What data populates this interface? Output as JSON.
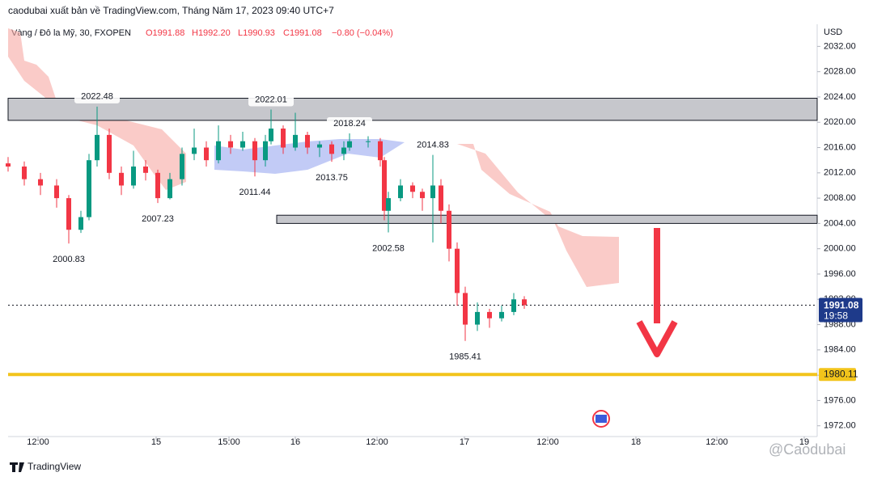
{
  "header": {
    "publisher": "caodubai xuất bản về TradingView.com, Tháng Năm 17, 2023 09:40 UTC+7",
    "symbol": "Vàng / Đô la Mỹ, 30, FXOPEN",
    "open": "O1991.88",
    "high": "H1992.20",
    "low": "L1990.93",
    "close": "C1991.08",
    "change": "−0.80 (−0.04%)",
    "currency": "USD"
  },
  "footer": {
    "brand": "TradingView",
    "watermark": "@Caodubai"
  },
  "chart_data": {
    "type": "candlestick",
    "x": [
      0,
      20,
      40,
      60,
      75,
      90,
      100,
      110,
      125,
      140,
      155,
      170,
      185,
      200,
      215,
      230,
      245,
      260,
      275,
      290,
      305,
      318,
      325,
      340,
      355,
      370,
      385,
      400,
      415,
      422,
      445,
      460,
      465,
      470,
      485,
      500,
      512,
      525,
      535,
      545,
      555,
      565,
      580,
      595,
      610,
      625,
      638
    ],
    "open": [
      2013.5,
      2013,
      2011,
      2010,
      2008,
      2003,
      2005,
      2014,
      2018,
      2012,
      2010,
      2013,
      2012,
      2008,
      2011,
      2015,
      2016,
      2014,
      2017,
      2016,
      2017,
      2014,
      2017,
      2019,
      2016,
      2018,
      2016,
      2016.5,
      2015,
      2016,
      2017,
      2017,
      2014,
      2006,
      2008,
      2010,
      2009,
      2008,
      2010,
      2006,
      2000,
      1993,
      1988,
      1990,
      1989,
      1990,
      1992
    ],
    "high": [
      2014.5,
      2013.8,
      2012,
      2011,
      2008.5,
      2006,
      2015,
      2022.48,
      2019,
      2013,
      2015.5,
      2014,
      2012.5,
      2012,
      2016,
      2019,
      2017,
      2019.5,
      2018,
      2018.5,
      2017.5,
      2018,
      2022.01,
      2019.5,
      2021.5,
      2018.5,
      2017,
      2017,
      2017,
      2018.24,
      2017.8,
      2017.5,
      2014.5,
      2009,
      2011,
      2010.5,
      2009.5,
      2014.83,
      2011,
      2007,
      2001,
      1994,
      1991.5,
      1990.5,
      1991,
      1993,
      1992.5
    ],
    "low": [
      2012.2,
      2010,
      2008.5,
      2006.5,
      2000.83,
      2002.5,
      2004.5,
      2013,
      2011,
      2008.5,
      2009.5,
      2010.8,
      2007.23,
      2007.8,
      2010,
      2014,
      2013,
      2013.5,
      2015,
      2015.5,
      2011.44,
      2013,
      2016.5,
      2015,
      2015.5,
      2015,
      2014.5,
      2013.75,
      2014,
      2015.5,
      2016,
      2013,
      2004.5,
      2002.58,
      2007.5,
      2008,
      2006,
      2001,
      2004,
      1998,
      1991,
      1985.41,
      1987,
      1987.5,
      1988.5,
      1989.5,
      1990.5
    ],
    "close": [
      2013,
      2011,
      2010,
      2008,
      2003,
      2005,
      2014,
      2018,
      2012,
      2010,
      2013,
      2012,
      2008,
      2011,
      2015,
      2016,
      2014,
      2017,
      2016,
      2017,
      2014,
      2017,
      2019,
      2016,
      2018,
      2016,
      2016.5,
      2015,
      2016,
      2017,
      2017,
      2014,
      2006,
      2008,
      2010,
      2009,
      2008,
      2010,
      2006,
      2000,
      1993,
      1988,
      1990,
      1989,
      1990,
      1992,
      1991.08
    ],
    "up_color": "#089981",
    "down_color": "#f23645",
    "xlim": [
      0,
      1000
    ],
    "xticks": [
      {
        "value": 37,
        "label": "12:00"
      },
      {
        "value": 183,
        "label": "15"
      },
      {
        "value": 273,
        "label": "15:00"
      },
      {
        "value": 355,
        "label": "16"
      },
      {
        "value": 456,
        "label": "12:00"
      },
      {
        "value": 564,
        "label": "17"
      },
      {
        "value": 667,
        "label": "12:00"
      },
      {
        "value": 776,
        "label": "18"
      },
      {
        "value": 876,
        "label": "12:00"
      },
      {
        "value": 984,
        "label": "19"
      }
    ],
    "ylim": [
      1970.3,
      2035.5
    ],
    "yticks": [
      {
        "value": 1972,
        "label": "1972.00"
      },
      {
        "value": 1976,
        "label": "1976.00"
      },
      {
        "value": 1980,
        "label": "1980.00"
      },
      {
        "value": 1984,
        "label": "1984.00"
      },
      {
        "value": 1988,
        "label": "1988.00"
      },
      {
        "value": 1992,
        "label": "1992.00"
      },
      {
        "value": 1996,
        "label": "1996.00"
      },
      {
        "value": 2000,
        "label": "2000.00"
      },
      {
        "value": 2004,
        "label": "2004.00"
      },
      {
        "value": 2008,
        "label": "2008.00"
      },
      {
        "value": 2012,
        "label": "2012.00"
      },
      {
        "value": 2016,
        "label": "2016.00"
      },
      {
        "value": 2020,
        "label": "2020.00"
      },
      {
        "value": 2024,
        "label": "2024.00"
      },
      {
        "value": 2028,
        "label": "2028.00"
      },
      {
        "value": 2032,
        "label": "2032.00"
      }
    ],
    "grid": false,
    "annotations": [
      {
        "x": 110,
        "value": 2022.48,
        "side": "above"
      },
      {
        "x": 325,
        "value": 2022.01,
        "side": "above"
      },
      {
        "x": 422,
        "value": 2018.24,
        "side": "above"
      },
      {
        "x": 525,
        "value": 2014.83,
        "side": "above"
      },
      {
        "x": 400,
        "value": 2013.75,
        "side": "below"
      },
      {
        "x": 305,
        "value": 2011.44,
        "side": "below"
      },
      {
        "x": 185,
        "value": 2007.23,
        "side": "below"
      },
      {
        "x": 75,
        "value": 2000.83,
        "side": "below"
      },
      {
        "x": 470,
        "value": 2002.58,
        "side": "below"
      },
      {
        "x": 565,
        "value": 1985.41,
        "side": "below"
      }
    ],
    "zones": [
      {
        "from": 2020.3,
        "to": 2023.8,
        "start": 0,
        "color": "#c6c7cc"
      },
      {
        "from": 2004,
        "to": 2005.3,
        "start": 332,
        "color": "#c6c7cc"
      }
    ],
    "level": {
      "value": 1980.11,
      "color": "#f2c41b"
    },
    "last_price": {
      "value": 1991.08,
      "time": "19:58",
      "color": "#1e3a8a"
    }
  }
}
